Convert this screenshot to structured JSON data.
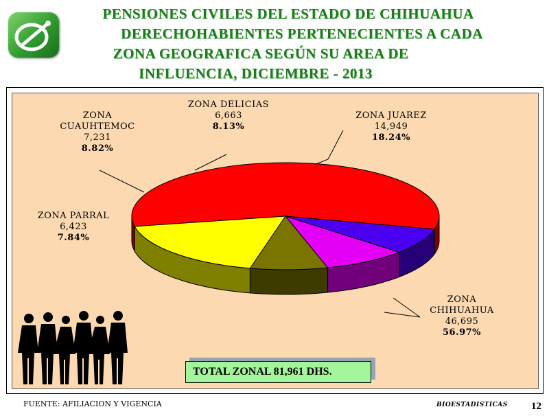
{
  "header": {
    "title_lines": [
      "PENSIONES  CIVILES  DEL  ESTADO  DE  CHIHUAHUA",
      "DERECHOHABIENTES  PERTENECIENTES A CADA",
      "ZONA GEOGRAFICA SEGÚN SU AREA DE",
      "INFLUENCIA,   DICIEMBRE - 2013"
    ]
  },
  "chart_data": {
    "type": "pie",
    "title": "",
    "categories": [
      "ZONA CHIHUAHUA",
      "ZONA PARRAL",
      "ZONA CUAUHTEMOC",
      "ZONA DELICIAS",
      "ZONA JUAREZ"
    ],
    "values": [
      46695,
      6423,
      7231,
      6663,
      14949
    ],
    "value_labels": [
      "46,695",
      "6,423",
      "7,231",
      "6,663",
      "14,949"
    ],
    "percent_labels": [
      "56.97%",
      "7.84%",
      "8.82%",
      "8.13%",
      "18.24%"
    ],
    "label_lines": [
      [
        "ZONA",
        "CHIHUAHUA"
      ],
      [
        "ZONA PARRAL"
      ],
      [
        "ZONA",
        "CUAUHTEMOC"
      ],
      [
        "ZONA DELICIAS"
      ],
      [
        "ZONA JUAREZ"
      ]
    ],
    "colors": [
      "#ff0000",
      "#4a00ee",
      "#e400f5",
      "#7a7500",
      "#ffff00"
    ],
    "style": "3d",
    "background": "#fcd9b1"
  },
  "total": {
    "label": "TOTAL ZONAL  81,961 DHS."
  },
  "footer": {
    "source": "FUENTE: AFILIACION Y VIGENCIA",
    "department": "BIOESTADISTICAS",
    "page": "12"
  }
}
